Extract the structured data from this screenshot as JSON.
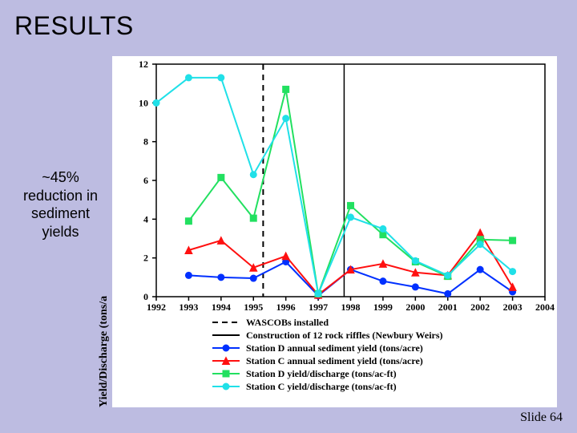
{
  "title": "RESULTS",
  "annotation": "~45% reduction in sediment yields",
  "slide_label": "Slide 64",
  "chart": {
    "type": "line",
    "background_color": "#ffffff",
    "axis_color": "#000000",
    "ylabel": "Yield/Discharge (tons/a",
    "years": [
      1992,
      1993,
      1994,
      1995,
      1996,
      1997,
      1998,
      1999,
      2000,
      2001,
      2002,
      2003,
      2004
    ],
    "ylim": [
      0,
      12
    ],
    "ytick_step": 2,
    "x_tick_labels": [
      "1992",
      "1993",
      "1994",
      "1995",
      "1996",
      "1997",
      "1998",
      "1999",
      "2000",
      "2001",
      "2002",
      "2003",
      "2004"
    ],
    "markers": {
      "square_size": 8,
      "triangle_size": 9,
      "circle_size": 8
    },
    "line_width": 2,
    "series": [
      {
        "id": "station_d_sed_yield",
        "label": "Station D annual sediment yield (tons/acre)",
        "color": "#0030ff",
        "marker": "circle",
        "fill": true,
        "data": [
          [
            1993,
            1.1
          ],
          [
            1994,
            1.0
          ],
          [
            1995,
            0.95
          ],
          [
            1996,
            1.8
          ],
          [
            1997,
            0.05
          ],
          [
            1998,
            1.4
          ],
          [
            1999,
            0.8
          ],
          [
            2000,
            0.5
          ],
          [
            2001,
            0.15
          ],
          [
            2002,
            1.4
          ],
          [
            2003,
            0.25
          ]
        ]
      },
      {
        "id": "station_c_sed_yield",
        "label": "Station C annual sediment yield (tons/acre)",
        "color": "#ff1010",
        "marker": "triangle",
        "fill": true,
        "data": [
          [
            1993,
            2.4
          ],
          [
            1994,
            2.9
          ],
          [
            1995,
            1.5
          ],
          [
            1996,
            2.1
          ],
          [
            1997,
            0.1
          ],
          [
            1998,
            1.4
          ],
          [
            1999,
            1.7
          ],
          [
            2000,
            1.25
          ],
          [
            2001,
            1.1
          ],
          [
            2002,
            3.3
          ],
          [
            2003,
            0.5
          ]
        ]
      },
      {
        "id": "station_d_yield_discharge",
        "label": "Station D yield/discharge (tons/ac-ft)",
        "color": "#22e060",
        "marker": "square",
        "fill": true,
        "data": [
          [
            1993,
            3.9
          ],
          [
            1994,
            6.15
          ],
          [
            1995,
            4.05
          ],
          [
            1996,
            10.7
          ],
          [
            1997,
            0.15
          ],
          [
            1998,
            4.7
          ],
          [
            1999,
            3.2
          ],
          [
            2000,
            1.8
          ],
          [
            2001,
            1.05
          ],
          [
            2002,
            2.95
          ],
          [
            2003,
            2.9
          ]
        ]
      },
      {
        "id": "station_c_yield_discharge",
        "label": "Station C yield/discharge (tons/ac-ft)",
        "color": "#20e0e8",
        "marker": "circle",
        "fill": true,
        "data": [
          [
            1992,
            10.0
          ],
          [
            1993,
            11.3
          ],
          [
            1994,
            11.3
          ],
          [
            1995,
            6.3
          ],
          [
            1996,
            9.2
          ],
          [
            1997,
            0.15
          ],
          [
            1998,
            4.1
          ],
          [
            1999,
            3.5
          ],
          [
            2000,
            1.85
          ],
          [
            2001,
            1.1
          ],
          [
            2002,
            2.7
          ],
          [
            2003,
            1.3
          ]
        ]
      }
    ],
    "vlines": [
      {
        "id": "wascobs",
        "x": 1995.3,
        "style": "dashed",
        "color": "#000000",
        "width": 2,
        "label": "WASCOBs installed"
      },
      {
        "id": "riffles",
        "x": 1997.8,
        "style": "solid",
        "color": "#000000",
        "width": 1.5,
        "label": "Construction of 12 rock riffles (Newbury Weirs)"
      }
    ],
    "legend": {
      "position": "below",
      "items": [
        {
          "style": "dashed",
          "color": "#000000",
          "marker": null,
          "text": "WASCOBs installed"
        },
        {
          "style": "solid",
          "color": "#000000",
          "marker": null,
          "text": "Construction of 12 rock riffles (Newbury Weirs)"
        },
        {
          "style": "solid",
          "color": "#0030ff",
          "marker": "circle",
          "text": "Station D annual sediment yield (tons/acre)"
        },
        {
          "style": "solid",
          "color": "#ff1010",
          "marker": "triangle",
          "text": "Station C annual sediment yield (tons/acre)"
        },
        {
          "style": "solid",
          "color": "#22e060",
          "marker": "square",
          "text": "Station D yield/discharge (tons/ac-ft)"
        },
        {
          "style": "solid",
          "color": "#20e0e8",
          "marker": "circle",
          "text": "Station C yield/discharge (tons/ac-ft)"
        }
      ]
    }
  }
}
